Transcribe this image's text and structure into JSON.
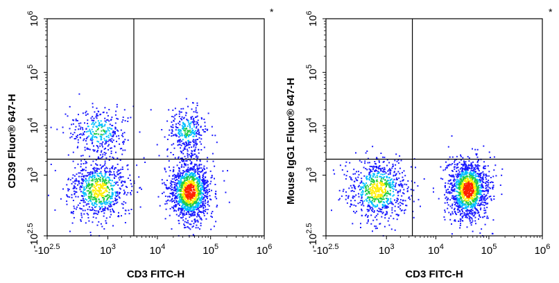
{
  "chart_data": [
    {
      "type": "scatter",
      "subtype": "flow cytometry density dot plot",
      "corner_mark": "*",
      "xlabel": "CD3 FITC-H",
      "ylabel": "CD39 Fluor® 647-H",
      "x_scale": "biexponential (log above ~10^3)",
      "y_scale": "biexponential (log above ~10^3)",
      "xlim": [
        -316,
        1000000
      ],
      "ylim": [
        -316,
        1000000
      ],
      "x_ticks": [
        {
          "base": "-10",
          "exp": "2.5",
          "value": -316
        },
        {
          "base": "10",
          "exp": "3",
          "value": 1000
        },
        {
          "base": "10",
          "exp": "4",
          "value": 10000
        },
        {
          "base": "10",
          "exp": "5",
          "value": 100000
        },
        {
          "base": "10",
          "exp": "6",
          "value": 1000000
        }
      ],
      "y_ticks": [
        {
          "base": "-10",
          "exp": "2.5",
          "value": -316
        },
        {
          "base": "10",
          "exp": "3",
          "value": 1000
        },
        {
          "base": "10",
          "exp": "4",
          "value": 10000
        },
        {
          "base": "10",
          "exp": "5",
          "value": 100000
        },
        {
          "base": "10",
          "exp": "6",
          "value": 1000000
        }
      ],
      "quadrant_gate": {
        "x": 3500,
        "y": 2200
      },
      "populations": [
        {
          "quadrant": "lower-left",
          "center": [
            600,
            450
          ],
          "relative_density": "medium"
        },
        {
          "quadrant": "upper-left",
          "center": [
            600,
            8000
          ],
          "relative_density": "low"
        },
        {
          "quadrant": "lower-right",
          "center": [
            40000,
            400
          ],
          "relative_density": "high"
        },
        {
          "quadrant": "upper-right",
          "center": [
            35000,
            8000
          ],
          "relative_density": "low"
        }
      ],
      "colors": {
        "low": "#1a1aff",
        "mid_low": "#00bfff",
        "mid": "#22cc44",
        "mid_high": "#ffee00",
        "high": "#ff2200"
      }
    },
    {
      "type": "scatter",
      "subtype": "flow cytometry density dot plot (isotype control)",
      "corner_mark": "*",
      "xlabel": "CD3 FITC-H",
      "ylabel": "Mouse IgG1 Fluor® 647-H",
      "x_scale": "biexponential (log above ~10^3)",
      "y_scale": "biexponential (log above ~10^3)",
      "xlim": [
        -316,
        1000000
      ],
      "ylim": [
        -316,
        1000000
      ],
      "x_ticks": [
        {
          "base": "-10",
          "exp": "2.5",
          "value": -316
        },
        {
          "base": "10",
          "exp": "3",
          "value": 1000
        },
        {
          "base": "10",
          "exp": "4",
          "value": 10000
        },
        {
          "base": "10",
          "exp": "5",
          "value": 100000
        },
        {
          "base": "10",
          "exp": "6",
          "value": 1000000
        }
      ],
      "y_ticks": [
        {
          "base": "-10",
          "exp": "2.5",
          "value": -316
        },
        {
          "base": "10",
          "exp": "3",
          "value": 1000
        },
        {
          "base": "10",
          "exp": "4",
          "value": 10000
        },
        {
          "base": "10",
          "exp": "5",
          "value": 100000
        },
        {
          "base": "10",
          "exp": "6",
          "value": 1000000
        }
      ],
      "quadrant_gate": {
        "x": 3500,
        "y": 2200
      },
      "populations": [
        {
          "quadrant": "lower-left",
          "center": [
            600,
            450
          ],
          "relative_density": "medium"
        },
        {
          "quadrant": "lower-right",
          "center": [
            40000,
            450
          ],
          "relative_density": "high"
        }
      ],
      "colors": {
        "low": "#1a1aff",
        "mid_low": "#00bfff",
        "mid": "#22cc44",
        "mid_high": "#ffee00",
        "high": "#ff2200"
      }
    }
  ]
}
